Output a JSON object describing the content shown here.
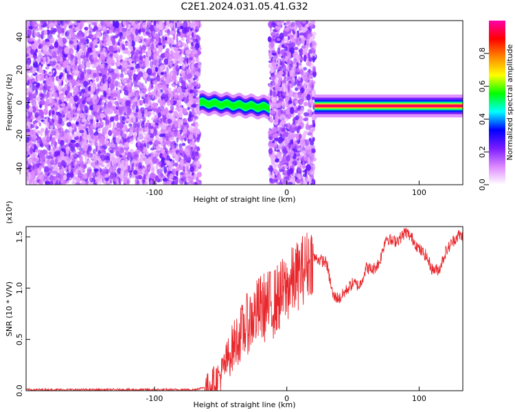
{
  "figure": {
    "title": "C2E1.2024.031.05.41.G32"
  },
  "chart_data": [
    {
      "type": "heatmap",
      "xlabel": "Height of straight line (km)",
      "ylabel": "Frequency (Hz)",
      "xlim": [
        -197,
        133
      ],
      "ylim": [
        -50,
        50
      ],
      "xticks": [
        "-100",
        "0",
        "100"
      ],
      "yticks": [
        "-40",
        "-20",
        "0",
        "20",
        "40"
      ],
      "colorbar": {
        "label": "Normalized spectral amplitude",
        "range": [
          0,
          1
        ],
        "ticks": [
          "0.0",
          "0.2",
          "0.4",
          "0.6",
          "0.8"
        ],
        "colors": [
          "#ffffff",
          "#dd88ff",
          "#7a1cff",
          "#0000ff",
          "#00ffff",
          "#00ff00",
          "#ffff00",
          "#ff8800",
          "#ff0000",
          "#ff00aa"
        ]
      },
      "regions": [
        {
          "x_range": [
            -197,
            -66
          ],
          "description": "noise"
        },
        {
          "x_range": [
            -66,
            -13
          ],
          "ridge_freq_start": 0,
          "ridge_freq_end": -3,
          "peak_amplitude": 0.55
        },
        {
          "x_range": [
            -13,
            21
          ],
          "description": "noise"
        },
        {
          "x_range": [
            21,
            133
          ],
          "ridge_freq": -2,
          "peak_amplitude": 0.95
        }
      ]
    },
    {
      "type": "line",
      "xlabel": "Height of straight line (km)",
      "ylabel": "SNR (10 * V/V)",
      "scale_note": "(x10⁴)",
      "xlim": [
        -197,
        133
      ],
      "ylim": [
        0,
        1.6
      ],
      "xticks": [
        "-100",
        "0",
        "100"
      ],
      "yticks": [
        "0.0",
        "0.5",
        "1.0",
        "1.5"
      ],
      "series": [
        {
          "color": "#e8262b",
          "x": [
            -197,
            -150,
            -100,
            -70,
            -60,
            -50,
            -40,
            -30,
            -20,
            -10,
            0,
            10,
            20,
            30,
            35,
            40,
            45,
            50,
            55,
            60,
            65,
            70,
            75,
            80,
            85,
            90,
            95,
            100,
            105,
            110,
            115,
            120,
            125,
            130,
            133
          ],
          "y": [
            0.01,
            0.01,
            0.01,
            0.01,
            0.04,
            0.15,
            0.45,
            0.65,
            0.8,
            0.85,
            1.0,
            1.15,
            1.3,
            1.25,
            0.92,
            0.9,
            0.98,
            1.05,
            1.02,
            1.2,
            1.18,
            1.25,
            1.5,
            1.45,
            1.48,
            1.55,
            1.48,
            1.38,
            1.32,
            1.18,
            1.18,
            1.35,
            1.45,
            1.52,
            1.5
          ]
        }
      ]
    }
  ]
}
